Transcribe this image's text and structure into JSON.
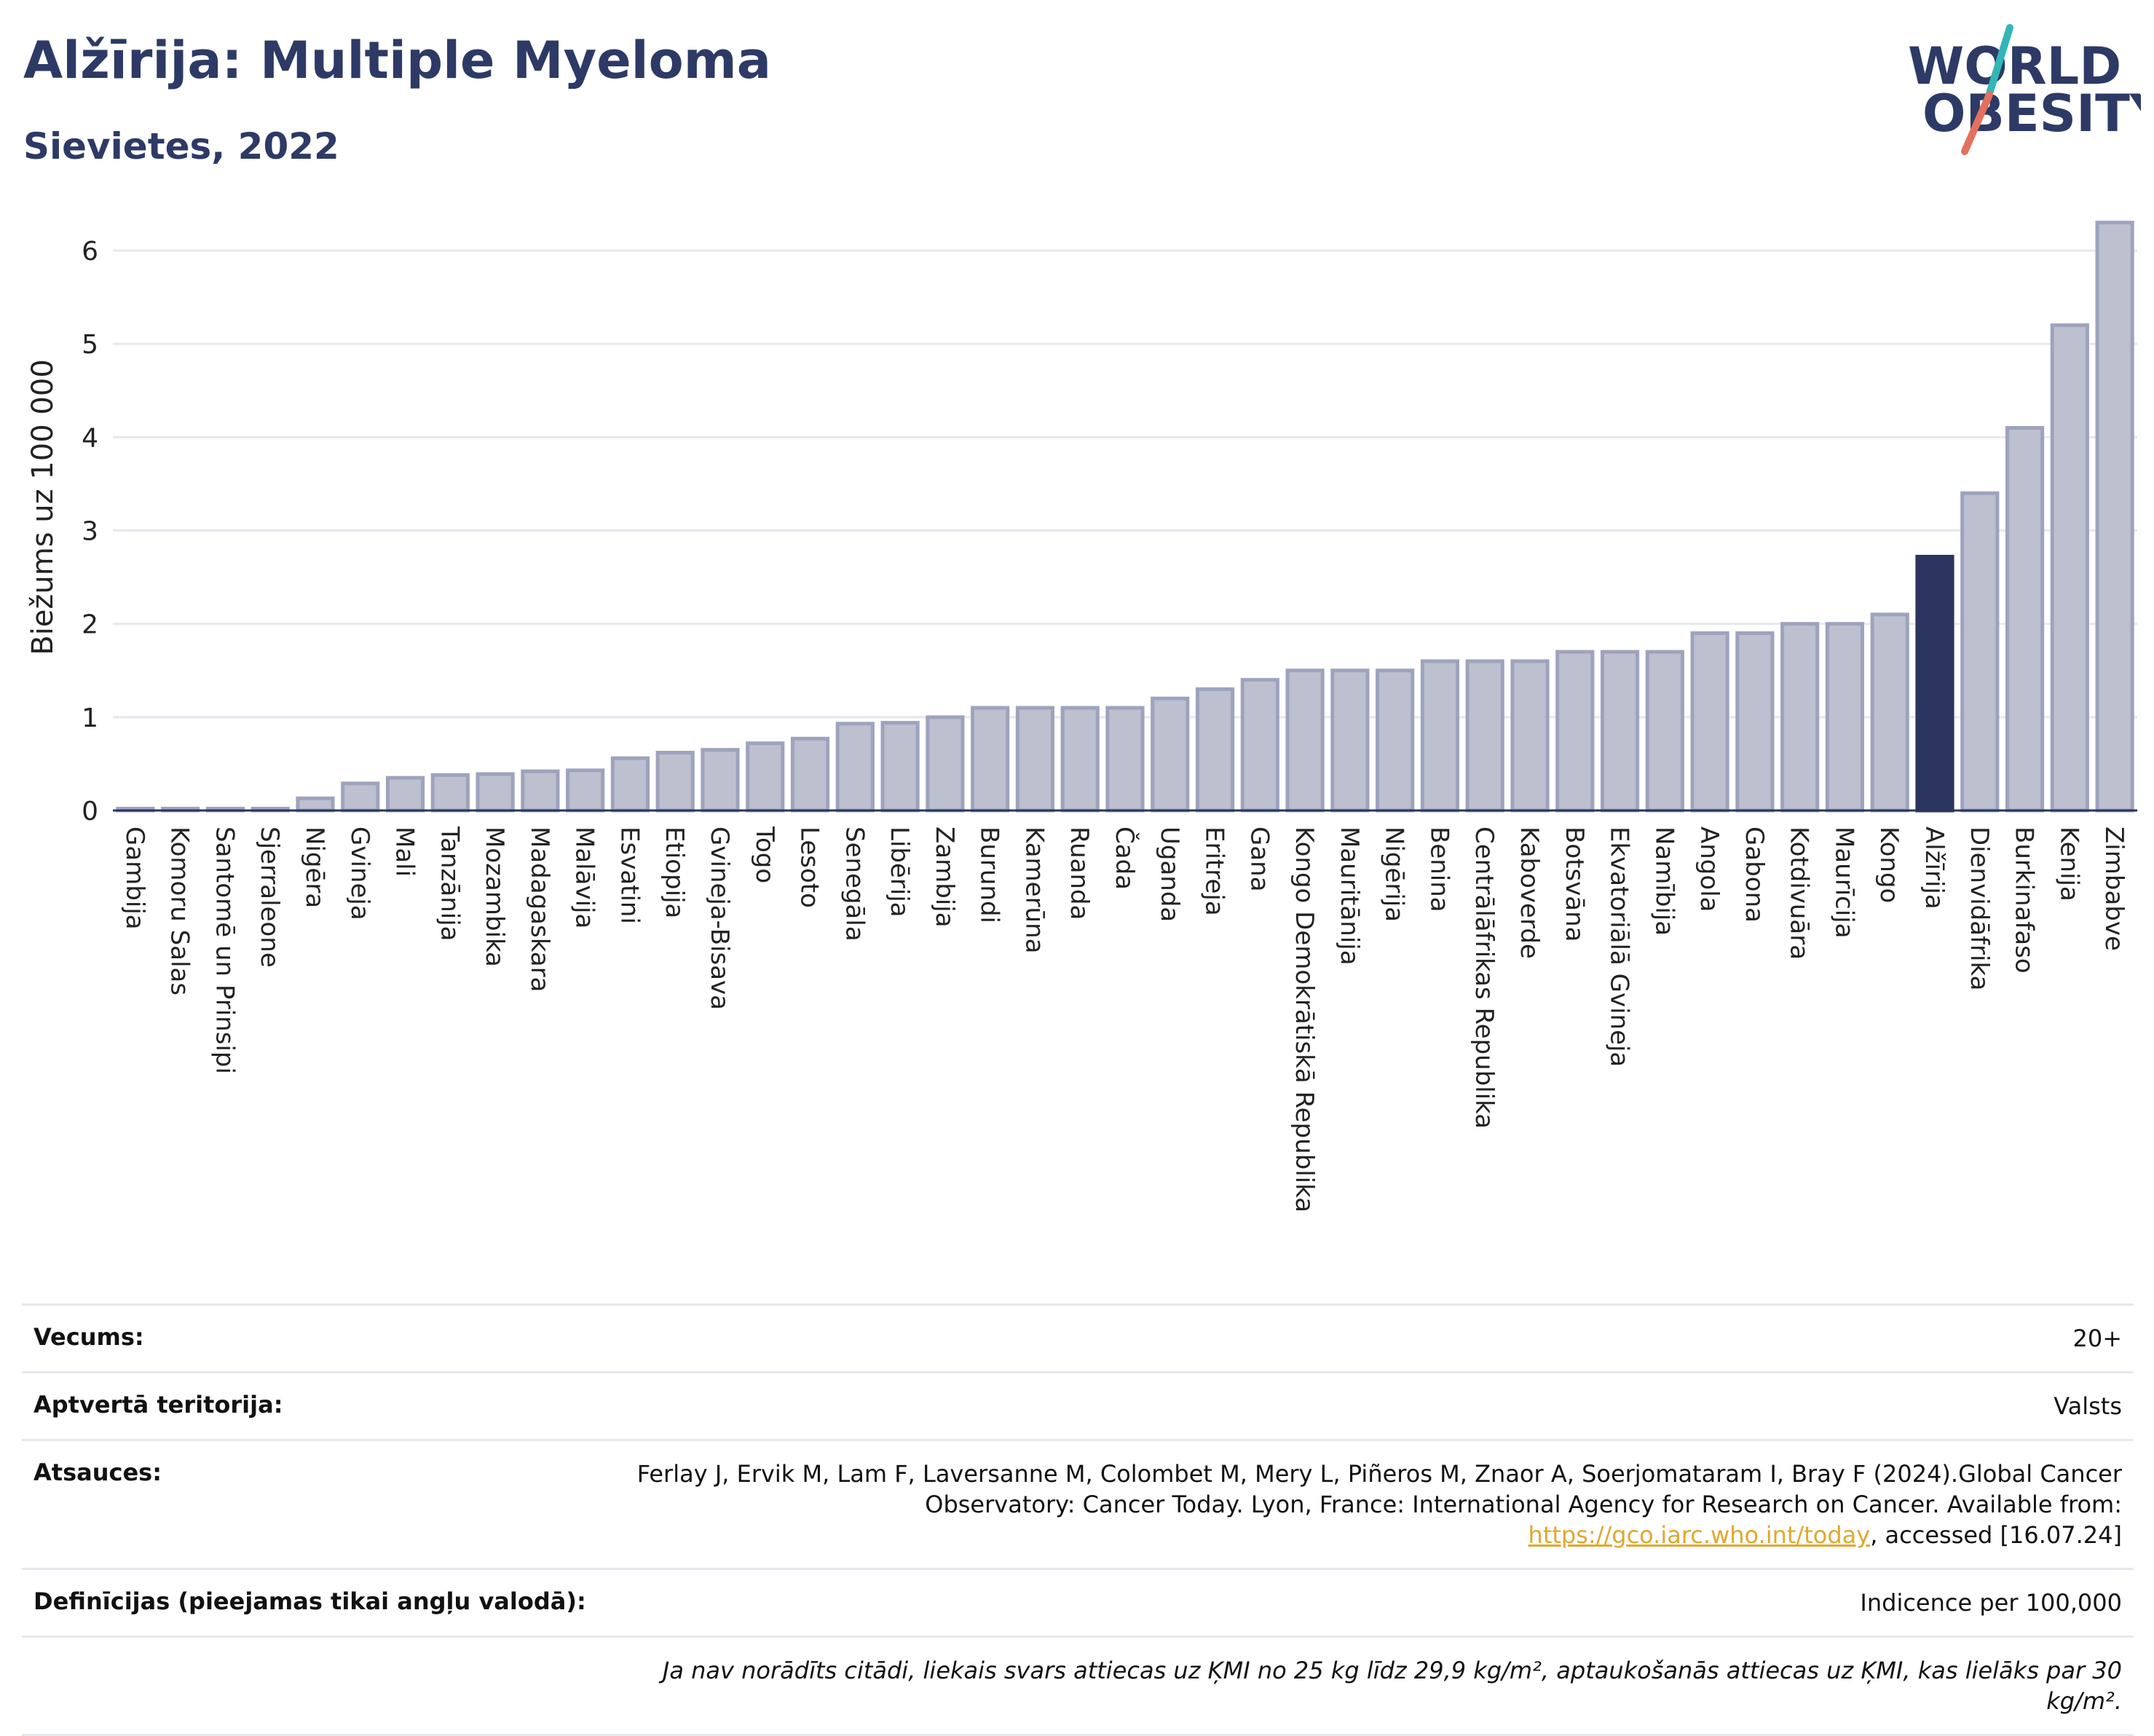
{
  "header": {
    "title": "Alžīrija: Multiple Myeloma",
    "subtitle": "Sievietes, 2022"
  },
  "logo": {
    "line1": "WORLD",
    "line2": "OBESITY",
    "icon": "world-obesity-logo"
  },
  "colors": {
    "bar": "#bcc0cf",
    "bar_border": "#9ea3bd",
    "highlight": "#2b3560",
    "grid": "#e6e8ee"
  },
  "chart_data": {
    "type": "bar",
    "ylabel": "Biežums uz 100 000",
    "ylim": [
      0,
      6.5
    ],
    "yticks": [
      0,
      1,
      2,
      3,
      4,
      5,
      6
    ],
    "highlight": "Alžīrija",
    "categories": [
      "Gambija",
      "Komoru Salas",
      "Santomē un Prinsipi",
      "Sjerraleone",
      "Nigēra",
      "Gvineja",
      "Mali",
      "Tanzānija",
      "Mozambika",
      "Madagaskara",
      "Malāvija",
      "Esvatini",
      "Etiopija",
      "Gvineja-Bisava",
      "Togo",
      "Lesoto",
      "Senegāla",
      "Libērija",
      "Zambija",
      "Burundi",
      "Kamerūna",
      "Ruanda",
      "Čada",
      "Uganda",
      "Eritreja",
      "Gana",
      "Kongo Demokrātiskā Republika",
      "Mauritānija",
      "Nigērija",
      "Benina",
      "Centrālāfrikas Republika",
      "Kaboverde",
      "Botsvāna",
      "Ekvatoriālā Gvineja",
      "Namībija",
      "Angola",
      "Gabona",
      "Kotdivuāra",
      "Maurīcija",
      "Kongo",
      "Alžīrija",
      "Dienvidāfrika",
      "Burkinafaso",
      "Kenija",
      "Zimbabve"
    ],
    "values": [
      0.02,
      0.02,
      0.02,
      0.02,
      0.13,
      0.29,
      0.35,
      0.38,
      0.39,
      0.42,
      0.43,
      0.56,
      0.62,
      0.65,
      0.72,
      0.77,
      0.93,
      0.94,
      1.0,
      1.1,
      1.1,
      1.1,
      1.1,
      1.2,
      1.3,
      1.4,
      1.5,
      1.5,
      1.5,
      1.6,
      1.6,
      1.6,
      1.7,
      1.7,
      1.7,
      1.9,
      1.9,
      2.0,
      2.0,
      2.1,
      2.72,
      3.4,
      4.1,
      5.2,
      6.3
    ]
  },
  "info": {
    "age_label": "Vecums:",
    "age_value": "20+",
    "coverage_label": "Aptvertā teritorija:",
    "coverage_value": "Valsts",
    "refs_label": "Atsauces:",
    "refs_text": "Ferlay J, Ervik M, Lam F, Laversanne M, Colombet M, Mery L, Piñeros M, Znaor A, Soerjomataram I, Bray F (2024).Global Cancer Observatory: Cancer Today. Lyon, France: International Agency for Research on Cancer. Available from: ",
    "refs_link": "https://gco.iarc.who.int/today",
    "refs_tail": ", accessed [16.07.24]",
    "defs_label": "Definīcijas (pieejamas tikai angļu valodā):",
    "defs_value": "Indicence per 100,000",
    "note": "Ja nav norādīts citādi, liekais svars attiecas uz ĶMI no 25 kg līdz 29,9 kg/m², aptaukošanās attiecas uz ĶMI, kas lielāks par 30 kg/m²."
  }
}
